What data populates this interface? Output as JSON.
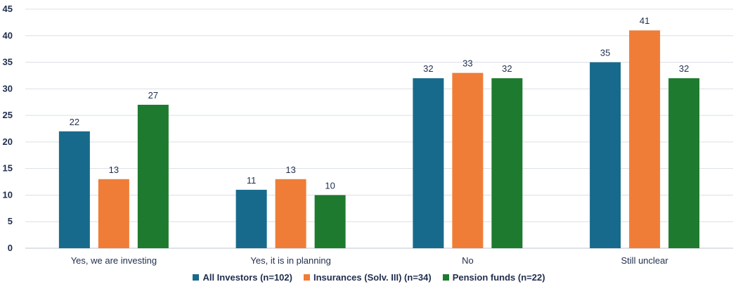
{
  "chart_data": {
    "type": "bar",
    "categories": [
      "Yes, we are investing",
      "Yes, it is in planning",
      "No",
      "Still unclear"
    ],
    "series": [
      {
        "name": "All Investors (n=102)",
        "values": [
          22,
          11,
          32,
          35
        ],
        "color": "#176a8c"
      },
      {
        "name": "Insurances (Solv. III) (n=34)",
        "values": [
          13,
          13,
          33,
          41
        ],
        "color": "#ef7d38"
      },
      {
        "name": "Pension funds (n=22)",
        "values": [
          27,
          10,
          32,
          32
        ],
        "color": "#1e7a2e"
      }
    ],
    "ylim": [
      0,
      45
    ],
    "yticks": [
      0,
      5,
      10,
      15,
      20,
      25,
      30,
      35,
      40,
      45
    ],
    "grid": true,
    "legend": "bottom",
    "title": "",
    "xlabel": "",
    "ylabel": ""
  }
}
